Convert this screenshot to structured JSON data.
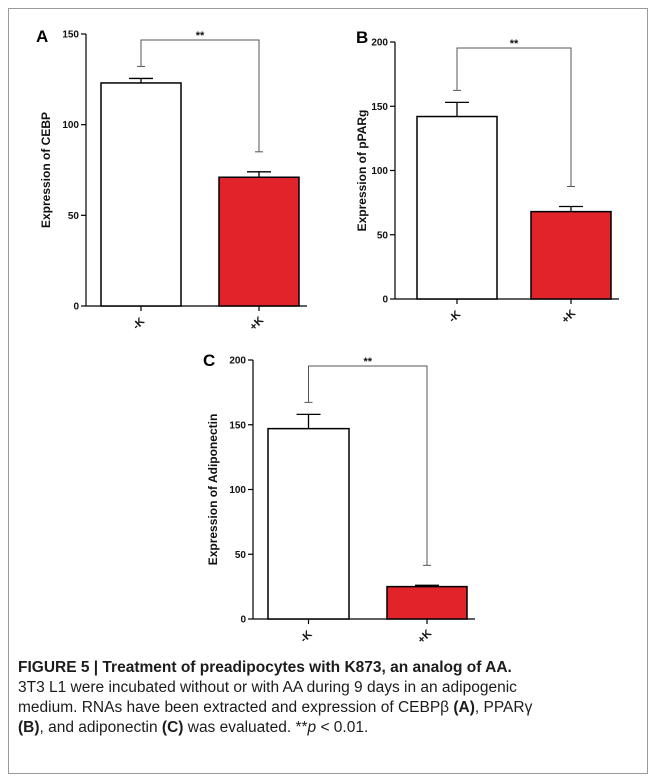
{
  "colors": {
    "minus_bar": "#ffffff",
    "plus_bar": "#e0242a",
    "axis": "#000000",
    "bracket": "#555555"
  },
  "chart_data": [
    {
      "panel": "A",
      "type": "bar",
      "categories": [
        "-K",
        "+K"
      ],
      "values": [
        123,
        71
      ],
      "errors": [
        2.5,
        3
      ],
      "ylabel": "Expression of CEBP",
      "ylim": [
        0,
        150
      ],
      "yticks": [
        0,
        50,
        100,
        150
      ],
      "significance": "**",
      "grid": false
    },
    {
      "panel": "B",
      "type": "bar",
      "categories": [
        "-K",
        "+K"
      ],
      "values": [
        142,
        68
      ],
      "errors": [
        11,
        4
      ],
      "ylabel": "Expression of pPARg",
      "ylim": [
        0,
        200
      ],
      "yticks": [
        0,
        50,
        100,
        150,
        200
      ],
      "significance": "**",
      "grid": false
    },
    {
      "panel": "C",
      "type": "bar",
      "categories": [
        "-K",
        "+K"
      ],
      "values": [
        147,
        25
      ],
      "errors": [
        11,
        1
      ],
      "ylabel": "Expression of Adiponectin",
      "ylim": [
        0,
        200
      ],
      "yticks": [
        0,
        50,
        100,
        150,
        200
      ],
      "significance": "**",
      "grid": false
    }
  ],
  "caption": {
    "title": "FIGURE 5 | Treatment of preadipocytes with K873, an analog of AA.",
    "line1": "3T3 L1 were incubated without or with AA during 9 days in an adipogenic",
    "line2": "medium. RNAs have been extracted and expression of CEBPβ ",
    "ref_a": "(A)",
    "line2b": ", PPARγ",
    "ref_b": "(B)",
    "line3": ", and adiponectin ",
    "ref_c": "(C)",
    "line3b": " was evaluated. **",
    "p_symbol": "p",
    "line3c": " < 0.01."
  }
}
